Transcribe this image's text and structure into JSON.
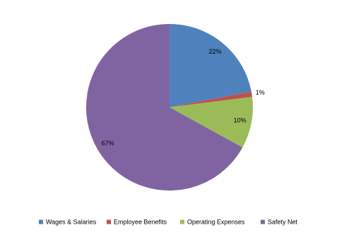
{
  "chart_data": {
    "type": "pie",
    "categories": [
      "Wages & Salaries",
      "Employee Benefits",
      "Operating Expenses",
      "Safety Net"
    ],
    "values": [
      22,
      1,
      10,
      67
    ],
    "value_labels": [
      "22%",
      "1%",
      "10%",
      "67%"
    ],
    "colors": [
      "#4f81bd",
      "#c0504d",
      "#9bbb59",
      "#8064a2"
    ],
    "legend": "bottom"
  }
}
